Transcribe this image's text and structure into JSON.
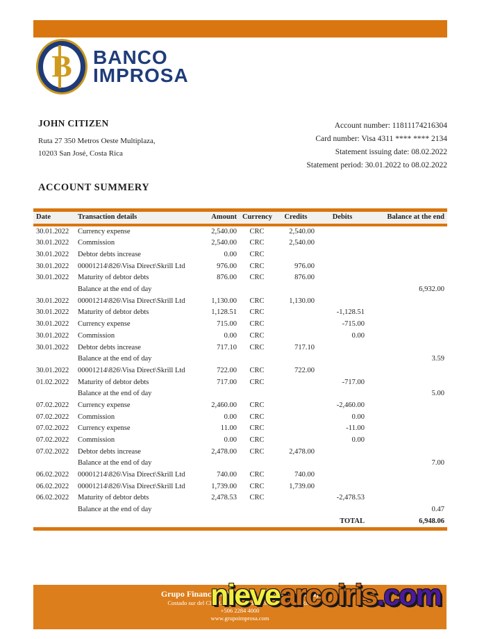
{
  "colors": {
    "accent_orange": "#D9760F",
    "footer_orange": "#DC7E1C",
    "brand_navy": "#1F3C7A",
    "brand_gold": "#D09A1E",
    "watermark_yellow": "#F2EE3E",
    "watermark_orange": "#D0701A",
    "watermark_purple": "#4A1A9C"
  },
  "brand": {
    "monogram": "B",
    "name_line1": "BANCO",
    "name_line2": "IMPROSA"
  },
  "account_holder": {
    "name": "JOHN CITIZEN",
    "address_line1": "Ruta 27 350 Metros Oeste Multiplaza,",
    "address_line2": "10203 San José, Costa Rica"
  },
  "statement_info": {
    "lines": [
      "Account number: 11811174216304",
      "Card number: Visa 4311 **** **** 2134",
      "Statement issuing date: 08.02.2022",
      "Statement period: 30.01.2022 to 08.02.2022"
    ]
  },
  "section_title": "ACCOUNT SUMMERY",
  "table": {
    "columns": [
      "Date",
      "Transaction details",
      "Amount",
      "Currency",
      "Credits",
      "Debits",
      "Balance at the end"
    ],
    "rows": [
      {
        "date": "30.01.2022",
        "details": "Currency expense",
        "amount": "2,540.00",
        "currency": "CRC",
        "credits": "2,540.00",
        "debits": "",
        "balance": ""
      },
      {
        "date": "30.01.2022",
        "details": "Commission",
        "amount": "2,540.00",
        "currency": "CRC",
        "credits": "2,540.00",
        "debits": "",
        "balance": ""
      },
      {
        "date": "30.01.2022",
        "details": "Debtor debts increase",
        "amount": "0.00",
        "currency": "CRC",
        "credits": "",
        "debits": "",
        "balance": ""
      },
      {
        "date": "30.01.2022",
        "details": "00001214\\826\\Visa Direct\\Skrill Ltd",
        "amount": "976.00",
        "currency": "CRC",
        "credits": "976.00",
        "debits": "",
        "balance": ""
      },
      {
        "date": "30.01.2022",
        "details": "Maturity of debtor debts",
        "amount": "876.00",
        "currency": "CRC",
        "credits": "876.00",
        "debits": "",
        "balance": ""
      },
      {
        "date": "",
        "details": "Balance at the end of day",
        "amount": "",
        "currency": "",
        "credits": "",
        "debits": "",
        "balance": "6,932.00"
      },
      {
        "date": "30.01.2022",
        "details": "00001214\\826\\Visa Direct\\Skrill Ltd",
        "amount": "1,130.00",
        "currency": "CRC",
        "credits": "1,130.00",
        "debits": "",
        "balance": ""
      },
      {
        "date": "30.01.2022",
        "details": "Maturity of debtor debts",
        "amount": "1,128.51",
        "currency": "CRC",
        "credits": "",
        "debits": "-1,128.51",
        "balance": ""
      },
      {
        "date": "30.01.2022",
        "details": "Currency expense",
        "amount": "715.00",
        "currency": "CRC",
        "credits": "",
        "debits": "-715.00",
        "balance": ""
      },
      {
        "date": "30.01.2022",
        "details": "Commission",
        "amount": "0.00",
        "currency": "CRC",
        "credits": "",
        "debits": "0.00",
        "balance": ""
      },
      {
        "date": "30.01.2022",
        "details": "Debtor debts increase",
        "amount": "717.10",
        "currency": "CRC",
        "credits": "717.10",
        "debits": "",
        "balance": ""
      },
      {
        "date": "",
        "details": "Balance at the end of day",
        "amount": "",
        "currency": "",
        "credits": "",
        "debits": "",
        "balance": "3.59"
      },
      {
        "date": "30.01.2022",
        "details": "00001214\\826\\Visa Direct\\Skrill Ltd",
        "amount": "722.00",
        "currency": "CRC",
        "credits": "722.00",
        "debits": "",
        "balance": ""
      },
      {
        "date": "01.02.2022",
        "details": "Maturity of debtor debts",
        "amount": "717.00",
        "currency": "CRC",
        "credits": "",
        "debits": "-717.00",
        "balance": ""
      },
      {
        "date": "",
        "details": "Balance at the end of day",
        "amount": "",
        "currency": "",
        "credits": "",
        "debits": "",
        "balance": "5.00"
      },
      {
        "date": "07.02.2022",
        "details": "Currency expense",
        "amount": "2,460.00",
        "currency": "CRC",
        "credits": "",
        "debits": "-2,460.00",
        "balance": ""
      },
      {
        "date": "07.02.2022",
        "details": "Commission",
        "amount": "0.00",
        "currency": "CRC",
        "credits": "",
        "debits": "0.00",
        "balance": ""
      },
      {
        "date": "07.02.2022",
        "details": "Currency expense",
        "amount": "11.00",
        "currency": "CRC",
        "credits": "",
        "debits": "-11.00",
        "balance": ""
      },
      {
        "date": "07.02.2022",
        "details": "Commission",
        "amount": "0.00",
        "currency": "CRC",
        "credits": "",
        "debits": "0.00",
        "balance": ""
      },
      {
        "date": "07.02.2022",
        "details": "Debtor debts increase",
        "amount": "2,478.00",
        "currency": "CRC",
        "credits": "2,478.00",
        "debits": "",
        "balance": ""
      },
      {
        "date": "",
        "details": "Balance at the end of day",
        "amount": "",
        "currency": "",
        "credits": "",
        "debits": "",
        "balance": "7.00"
      },
      {
        "date": "06.02.2022",
        "details": "00001214\\826\\Visa Direct\\Skrill Ltd",
        "amount": "740.00",
        "currency": "CRC",
        "credits": "740.00",
        "debits": "",
        "balance": ""
      },
      {
        "date": "06.02.2022",
        "details": "00001214\\826\\Visa Direct\\Skrill Ltd",
        "amount": "1,739.00",
        "currency": "CRC",
        "credits": "1,739.00",
        "debits": "",
        "balance": ""
      },
      {
        "date": "06.02.2022",
        "details": "Maturity of debtor debts",
        "amount": "2,478.53",
        "currency": "CRC",
        "credits": "",
        "debits": "-2,478.53",
        "balance": ""
      },
      {
        "date": "",
        "details": "Balance at the end of day",
        "amount": "",
        "currency": "",
        "credits": "",
        "debits": "",
        "balance": "0.47"
      },
      {
        "date": "",
        "details": "",
        "amount": "",
        "currency": "",
        "credits": "",
        "debits": "TOTAL",
        "balance": "6,948.06",
        "is_total": true
      }
    ]
  },
  "footer": {
    "company": "Grupo Financiero Improsa (Banco Improsa)",
    "address": "Costado sur del Club Unión, Avenida 1, San José, Costa Rica",
    "phone": "+506 2284 4000",
    "website": "www.grupoimprosa.com"
  },
  "watermark": {
    "part1": "nieve",
    "part2": "arcoiris",
    "part3": ".com"
  }
}
